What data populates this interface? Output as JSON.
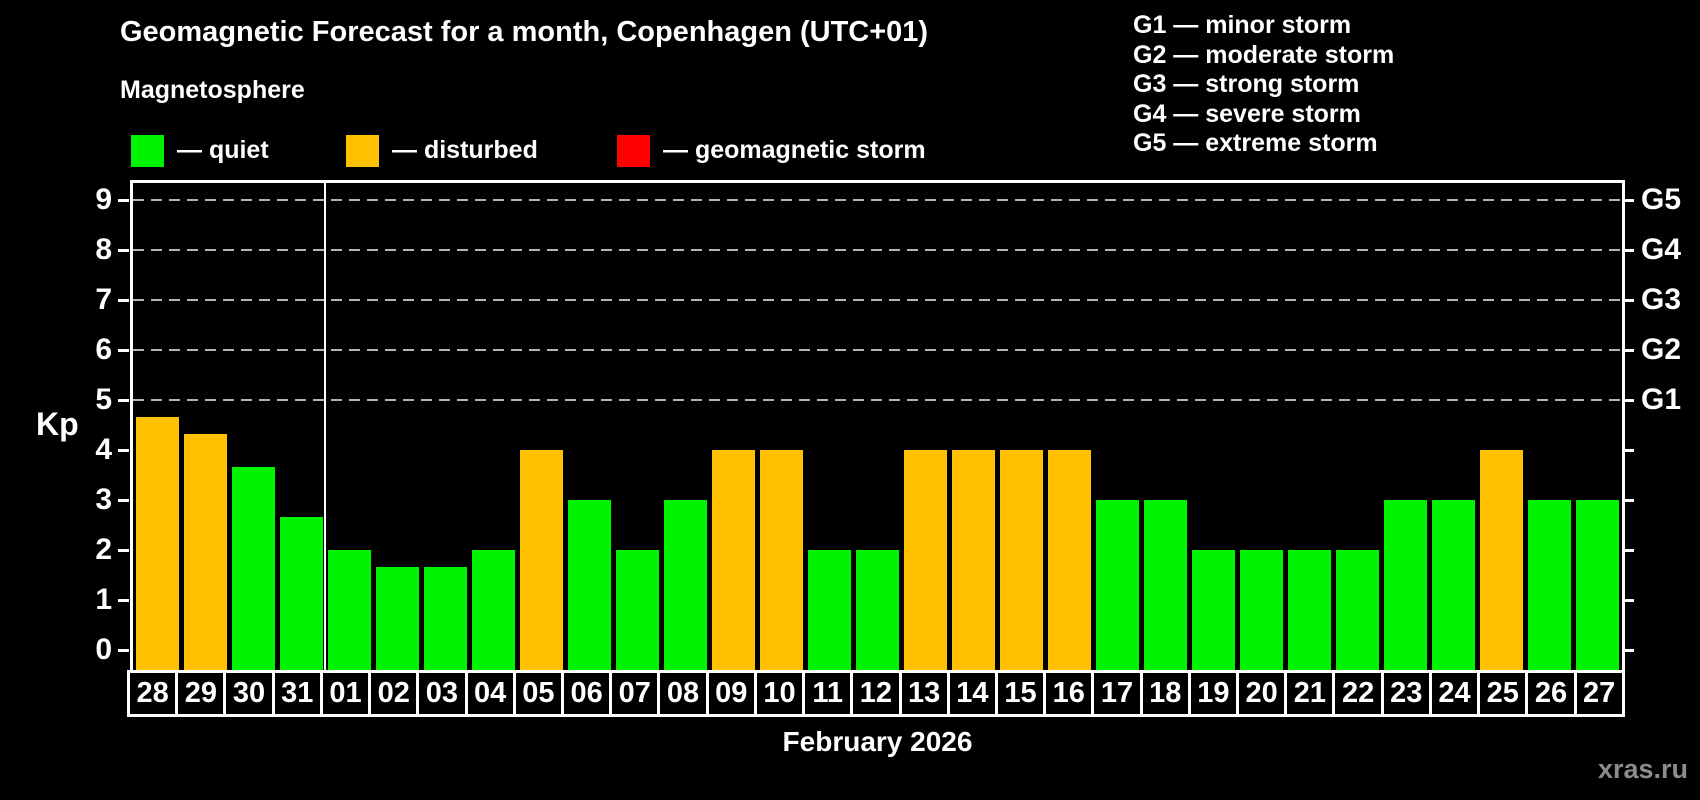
{
  "title": "Geomagnetic Forecast for a month, Copenhagen (UTC+01)",
  "subtitle": "Magnetosphere",
  "watermark": "xras.ru",
  "legend": {
    "items": [
      {
        "id": "quiet",
        "label": "— quiet",
        "color": "#00f400"
      },
      {
        "id": "disturbed",
        "label": "— disturbed",
        "color": "#ffc000"
      },
      {
        "id": "storm",
        "label": "— geomagnetic storm",
        "color": "#ff0000"
      }
    ]
  },
  "g_scale_legend": [
    "G1 — minor storm",
    "G2 — moderate storm",
    "G3 — strong storm",
    "G4 — severe storm",
    "G5 — extreme storm"
  ],
  "chart_data": {
    "type": "bar",
    "title": "February 2026",
    "ylabel": "Kp",
    "ylim": [
      -0.4,
      9.4
    ],
    "y_ticks": [
      0,
      1,
      2,
      3,
      4,
      5,
      6,
      7,
      8,
      9
    ],
    "grid": "dashed horizontal lines at Kp 5-9 only",
    "legend_position": "top",
    "right_axis": [
      {
        "kp": 5,
        "label": "G1"
      },
      {
        "kp": 6,
        "label": "G2"
      },
      {
        "kp": 7,
        "label": "G3"
      },
      {
        "kp": 8,
        "label": "G4"
      },
      {
        "kp": 9,
        "label": "G5"
      }
    ],
    "month_separator_after_index": 3,
    "categories": [
      "28",
      "29",
      "30",
      "31",
      "01",
      "02",
      "03",
      "04",
      "05",
      "06",
      "07",
      "08",
      "09",
      "10",
      "11",
      "12",
      "13",
      "14",
      "15",
      "16",
      "17",
      "18",
      "19",
      "20",
      "21",
      "22",
      "23",
      "24",
      "25",
      "26",
      "27"
    ],
    "values": [
      4.67,
      4.33,
      3.67,
      2.67,
      2,
      1.67,
      1.67,
      2,
      4,
      3,
      2,
      3,
      4,
      4,
      2,
      2,
      4,
      4,
      4,
      4,
      3,
      3,
      2,
      2,
      2,
      2,
      3,
      3,
      4,
      3,
      3
    ],
    "statuses": [
      "disturbed",
      "disturbed",
      "quiet",
      "quiet",
      "quiet",
      "quiet",
      "quiet",
      "quiet",
      "disturbed",
      "quiet",
      "quiet",
      "quiet",
      "disturbed",
      "disturbed",
      "quiet",
      "quiet",
      "disturbed",
      "disturbed",
      "disturbed",
      "disturbed",
      "quiet",
      "quiet",
      "quiet",
      "quiet",
      "quiet",
      "quiet",
      "quiet",
      "quiet",
      "disturbed",
      "quiet",
      "quiet"
    ]
  }
}
